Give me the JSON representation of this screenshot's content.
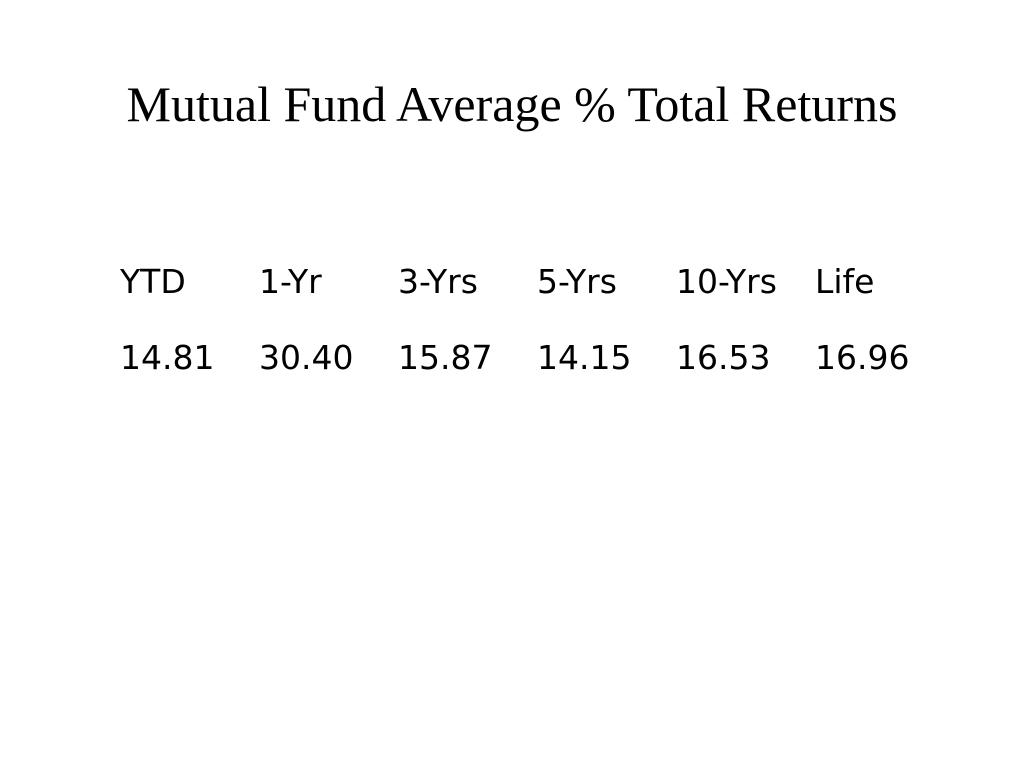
{
  "title": "Mutual Fund Average % Total Returns",
  "table": {
    "header": [
      "YTD",
      "1-Yr",
      "3-Yrs",
      "5-Yrs",
      "10-Yrs",
      "Life"
    ],
    "rows": [
      [
        "14.81",
        "30.40",
        "15.87",
        "14.15",
        "16.53",
        "16.96"
      ]
    ]
  }
}
